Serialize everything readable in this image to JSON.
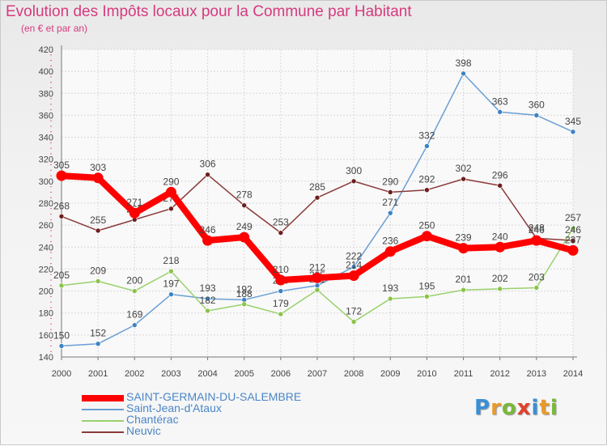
{
  "title": "Evolution des Impôts locaux pour la Commune par Habitant",
  "subtitle": "(en € et par an)",
  "logo": {
    "letters": [
      "P",
      "r",
      "o",
      "x",
      "i",
      "t",
      "i"
    ],
    "colors": [
      "#3a8fd6",
      "#e89a2a",
      "#7ab83a",
      "#e2402a",
      "#3a8fd6",
      "#e89a2a",
      "#7ab83a"
    ]
  },
  "chart_data": {
    "type": "line",
    "x": [
      "2000",
      "2001",
      "2002",
      "2003",
      "2004",
      "2005",
      "2006",
      "2007",
      "2008",
      "2009",
      "2010",
      "2011",
      "2012",
      "2013",
      "2014"
    ],
    "ylim": [
      140,
      420
    ],
    "yticks": [
      "140",
      "160",
      "180",
      "200",
      "220",
      "240",
      "260",
      "280",
      "300",
      "320",
      "340",
      "360",
      "380",
      "400",
      "420"
    ],
    "grid": true,
    "legend_position": "bottom-left",
    "series": [
      {
        "name": "SAINT-GERMAIN-DU-SALEMBRE",
        "color": "#ff0000",
        "marker": "#ff0000",
        "thick": true,
        "values": [
          305,
          303,
          271,
          290,
          246,
          249,
          210,
          212,
          214,
          236,
          250,
          239,
          240,
          246,
          237
        ],
        "labels": [
          "305",
          "303",
          "271",
          "290",
          "246",
          "249",
          "210",
          "212",
          "214",
          "236",
          "250",
          "239",
          "240",
          "246",
          "237"
        ]
      },
      {
        "name": "Saint-Jean-d'Ataux",
        "color": "#6a9fd4",
        "marker": "#3b82c4",
        "thick": false,
        "values": [
          150,
          152,
          169,
          197,
          193,
          192,
          200,
          205,
          222,
          271,
          332,
          398,
          363,
          360,
          345
        ],
        "labels": [
          "150",
          "152",
          "169",
          "197",
          "193",
          "192",
          "200",
          "205",
          "222",
          "271",
          "332",
          "398",
          "363",
          "360",
          "345"
        ]
      },
      {
        "name": "Chantérac",
        "color": "#99d16b",
        "marker": "#8bc34a",
        "thick": false,
        "values": [
          205,
          209,
          200,
          218,
          182,
          188,
          179,
          201,
          172,
          193,
          195,
          201,
          202,
          203,
          257
        ],
        "labels": [
          "205",
          "209",
          "200",
          "218",
          "182",
          "188",
          "179",
          "201",
          "172",
          "193",
          "195",
          "201",
          "202",
          "203",
          "257"
        ]
      },
      {
        "name": "Neuvic",
        "color": "#8a3a3a",
        "marker": "#6e1e1e",
        "thick": false,
        "values": [
          268,
          255,
          265,
          275,
          306,
          278,
          253,
          285,
          300,
          290,
          292,
          302,
          296,
          248,
          246
        ],
        "labels": [
          "268",
          "255",
          "265",
          "275",
          "306",
          "278",
          "253",
          "285",
          "300",
          "290",
          "292",
          "302",
          "296",
          "248",
          "246"
        ]
      }
    ]
  }
}
